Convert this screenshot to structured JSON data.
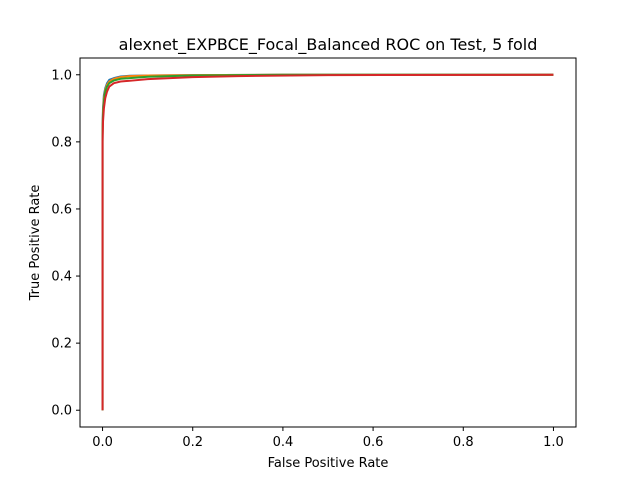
{
  "chart_data": {
    "type": "line",
    "title": "alexnet_EXPBCE_Focal_Balanced ROC on Test, 5 fold",
    "xlabel": "False Positive Rate",
    "ylabel": "True Positive Rate",
    "xlim": [
      -0.05,
      1.05
    ],
    "ylim": [
      -0.05,
      1.05
    ],
    "xticks": [
      0.0,
      0.2,
      0.4,
      0.6,
      0.8,
      1.0
    ],
    "yticks": [
      0.0,
      0.2,
      0.4,
      0.6,
      0.8,
      1.0
    ],
    "xtick_labels": [
      "0.0",
      "0.2",
      "0.4",
      "0.6",
      "0.8",
      "1.0"
    ],
    "ytick_labels": [
      "0.0",
      "0.2",
      "0.4",
      "0.6",
      "0.8",
      "1.0"
    ],
    "grid": false,
    "series": [
      {
        "color": "#1f77b4",
        "x": [
          0,
          0,
          0.001,
          0.003,
          0.006,
          0.01,
          0.015,
          0.025,
          0.04,
          0.06,
          0.1,
          0.2,
          0.4,
          1.0
        ],
        "y": [
          0,
          0.85,
          0.9,
          0.94,
          0.96,
          0.975,
          0.985,
          0.99,
          0.995,
          0.997,
          0.998,
          0.999,
          1.0,
          1.0
        ]
      },
      {
        "color": "#ff7f0e",
        "x": [
          0,
          0,
          0.001,
          0.003,
          0.006,
          0.01,
          0.015,
          0.025,
          0.04,
          0.06,
          0.1,
          0.2,
          0.4,
          1.0
        ],
        "y": [
          0,
          0.83,
          0.89,
          0.93,
          0.955,
          0.97,
          0.98,
          0.988,
          0.993,
          0.996,
          0.998,
          0.999,
          1.0,
          1.0
        ]
      },
      {
        "color": "#2ca02c",
        "x": [
          0,
          0,
          0.001,
          0.003,
          0.006,
          0.01,
          0.015,
          0.025,
          0.04,
          0.06,
          0.1,
          0.2,
          0.4,
          1.0
        ],
        "y": [
          0,
          0.82,
          0.88,
          0.92,
          0.95,
          0.965,
          0.975,
          0.983,
          0.988,
          0.99,
          0.994,
          0.998,
          1.0,
          1.0
        ]
      },
      {
        "color": "#d62728",
        "x": [
          0,
          0,
          0.001,
          0.003,
          0.006,
          0.01,
          0.015,
          0.025,
          0.04,
          0.06,
          0.1,
          0.15,
          0.2,
          0.3,
          0.5,
          1.0
        ],
        "y": [
          0,
          0.8,
          0.86,
          0.9,
          0.93,
          0.95,
          0.965,
          0.975,
          0.98,
          0.982,
          0.987,
          0.99,
          0.993,
          0.996,
          0.999,
          1.0
        ]
      }
    ]
  }
}
